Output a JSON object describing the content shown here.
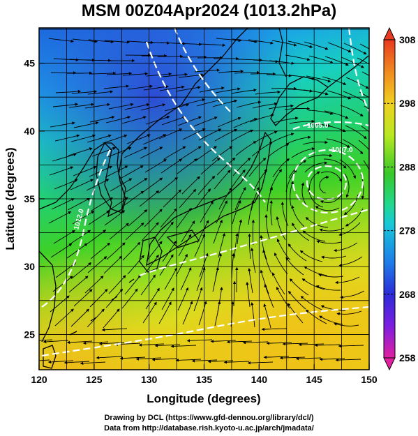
{
  "title": "MSM 00Z04Apr2024 (1013.2hPa)",
  "x_axis": {
    "label": "Longitude (degrees)",
    "ticks": [
      "120",
      "125",
      "130",
      "135",
      "140",
      "145",
      "150"
    ],
    "range": [
      120,
      150
    ]
  },
  "y_axis": {
    "label": "Latitude  (degrees)",
    "ticks": [
      "25",
      "30",
      "35",
      "40",
      "45"
    ],
    "range": [
      22.4,
      47.6
    ]
  },
  "colorbar": {
    "ticks": [
      "308",
      "298",
      "288",
      "278",
      "268",
      "258"
    ],
    "range": [
      258,
      308
    ],
    "colors": [
      "#e0208a",
      "#b41ee0",
      "#2c2cd8",
      "#1e7ce8",
      "#18c8d8",
      "#20d890",
      "#28c828",
      "#80e020",
      "#d0e820",
      "#f0d020",
      "#f09020",
      "#e83a20"
    ]
  },
  "isobar_labels": [
    "1005.0",
    "1007.0",
    "1012.0"
  ],
  "credits": {
    "line1": "Drawing by DCL (https://www.gfd-dennou.org/library/dcl/)",
    "line2": "Data from http://database.rish.kyoto-u.ac.jp/arch/jmadata/"
  },
  "map": {
    "low_center_label": "",
    "gridline_color": "#000000",
    "isobar_color": "#ffffff"
  }
}
